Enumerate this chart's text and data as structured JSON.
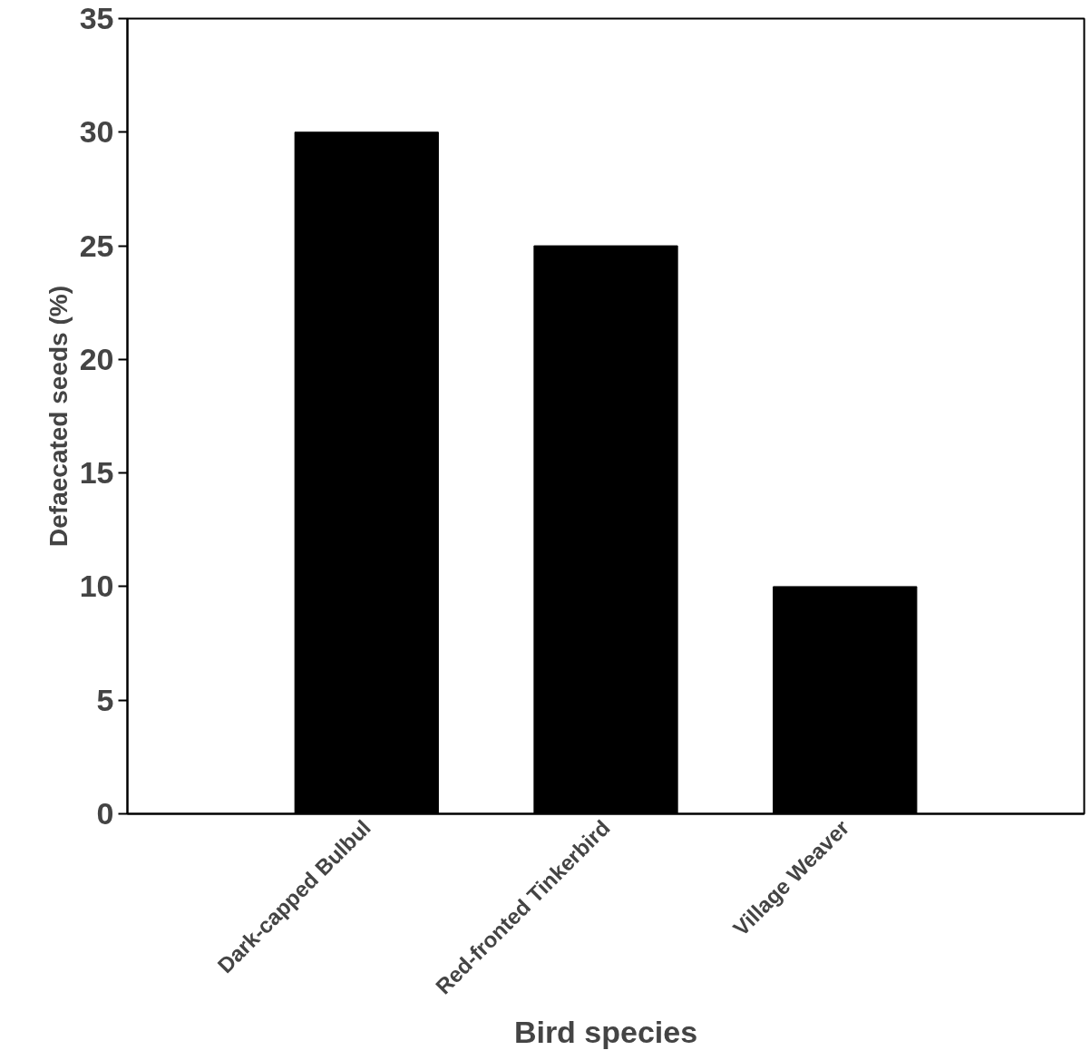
{
  "chart_data": {
    "type": "bar",
    "xlabel": "Bird species",
    "ylabel": "Defaecated seeds (%)",
    "categories": [
      "Dark-capped Bulbul",
      "Red-fronted Tinkerbird",
      "Village Weaver"
    ],
    "values": [
      30,
      25,
      10
    ],
    "color": "#000000",
    "ylim": [
      0,
      35
    ],
    "yticks": [
      0,
      5,
      10,
      15,
      20,
      25,
      30,
      35
    ],
    "grid": false
  }
}
